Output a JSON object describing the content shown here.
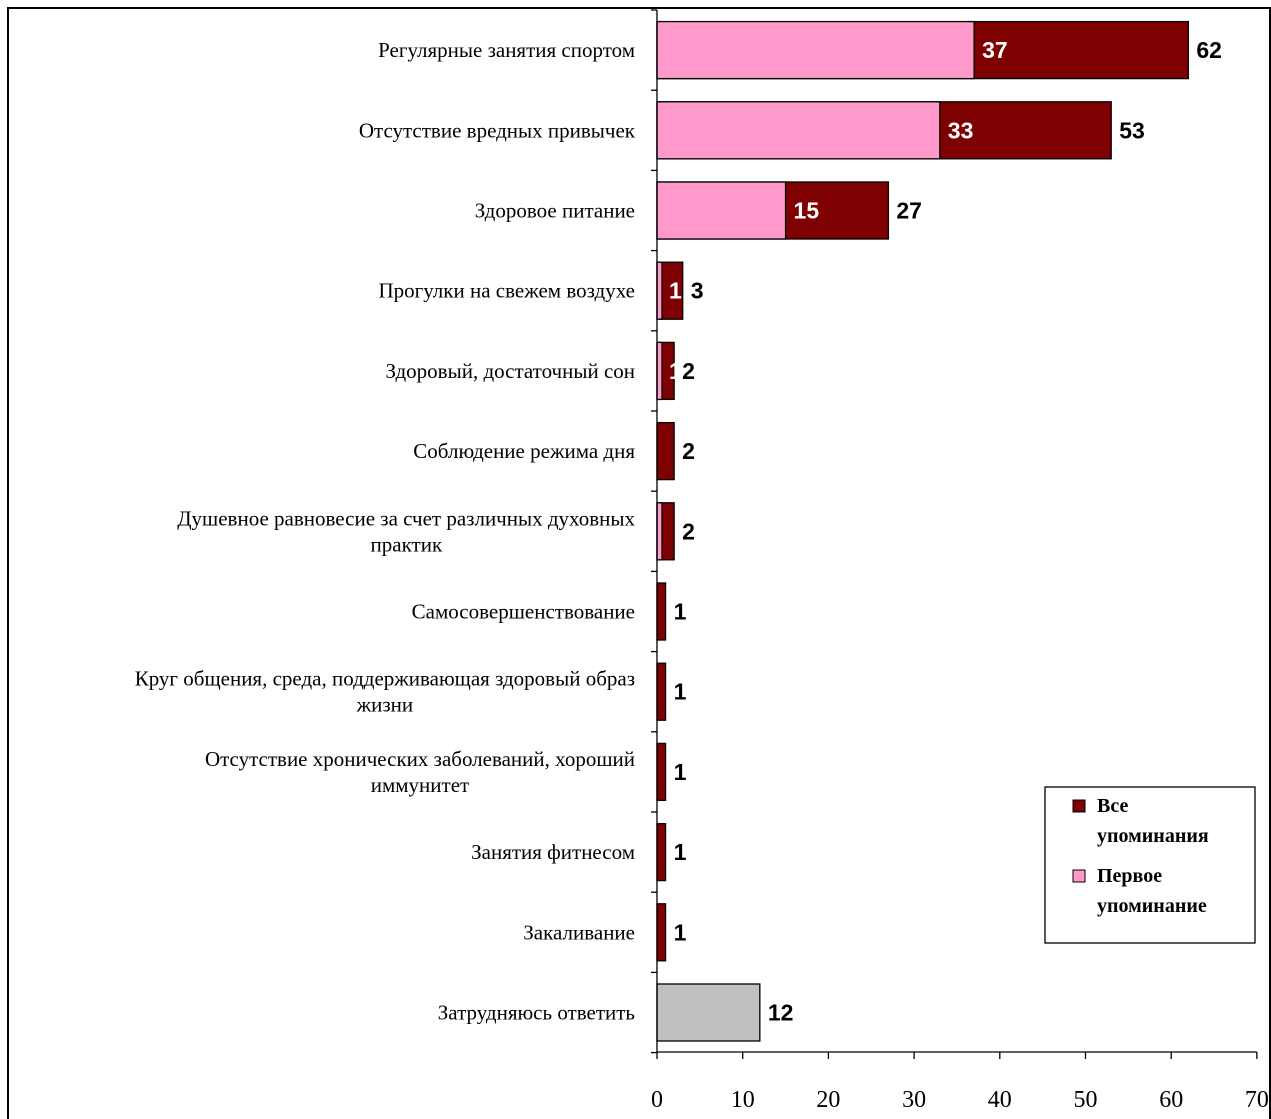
{
  "chart_data": {
    "type": "bar",
    "orientation": "horizontal",
    "stacked_overlay": true,
    "categories": [
      "Регулярные занятия спортом",
      "Отсутствие вредных привычек",
      "Здоровое питание",
      "Прогулки на свежем воздухе",
      "Здоровый, достаточный сон",
      "Соблюдение режима дня",
      "Душевное равновесие за счет различных духовных практик",
      "Самосовершенствование",
      "Круг общения, среда, поддерживающая здоровый образ жизни",
      "Отсутствие хронических заболеваний, хороший иммунитет",
      "Занятия фитнесом",
      "Закаливание",
      "Затрудняюсь ответить"
    ],
    "category_lines": [
      [
        "Регулярные занятия спортом"
      ],
      [
        "Отсутствие вредных привычек"
      ],
      [
        "Здоровое питание"
      ],
      [
        "Прогулки на свежем воздухе"
      ],
      [
        "Здоровый, достаточный сон"
      ],
      [
        "Соблюдение режима дня"
      ],
      [
        "Душевное равновесие за счет различных духовных",
        "практик"
      ],
      [
        "Самосовершенствование"
      ],
      [
        "Круг общения, среда, поддерживающая здоровый образ",
        "жизни"
      ],
      [
        "Отсутствие хронических заболеваний, хороший",
        "иммунитет"
      ],
      [
        "Занятия фитнесом"
      ],
      [
        "Закаливание"
      ],
      [
        "Затрудняюсь ответить"
      ]
    ],
    "series": [
      {
        "name": "Все упоминания",
        "color": "#7f0000",
        "values": [
          62,
          53,
          27,
          3,
          2,
          2,
          2,
          1,
          1,
          1,
          1,
          1,
          12
        ],
        "labels": [
          "62",
          "53",
          "27",
          "3",
          "2",
          "2",
          "2",
          "1",
          "1",
          "1",
          "1",
          "1",
          "12"
        ]
      },
      {
        "name": "Первое упоминание",
        "color": "#ff99cc",
        "values": [
          37,
          33,
          15,
          1,
          1,
          0,
          1,
          0,
          0,
          0,
          0,
          0,
          null
        ],
        "labels": [
          "37",
          "33",
          "15",
          "1",
          "1",
          "",
          "",
          "",
          "",
          "",
          "",
          "",
          ""
        ]
      }
    ],
    "special_bar": {
      "index": 12,
      "color": "#c0c0c0"
    },
    "xlim": [
      0,
      70
    ],
    "xticks": [
      0,
      10,
      20,
      30,
      40,
      50,
      60,
      70
    ],
    "grid": false,
    "legend_position": "bottom-right",
    "legend": [
      {
        "lines": [
          "Все",
          "упоминания"
        ],
        "color": "#7f0000"
      },
      {
        "lines": [
          "Первое",
          "упоминание"
        ],
        "color": "#ff99cc"
      }
    ],
    "title": "",
    "xlabel": "",
    "ylabel": ""
  }
}
